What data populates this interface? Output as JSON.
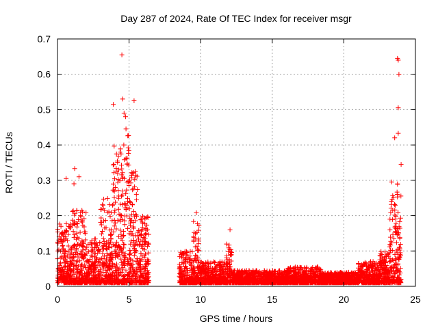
{
  "chart_data": {
    "type": "scatter",
    "title": "Day 287 of 2024, Rate Of TEC Index for receiver msgr",
    "xlabel": "GPS time / hours",
    "ylabel": "ROTI / TECUs",
    "xlim": [
      0,
      25
    ],
    "ylim": [
      0,
      0.7
    ],
    "x_ticks": [
      "0",
      "5",
      "10",
      "15",
      "20",
      "25"
    ],
    "y_ticks": [
      "0",
      "0.1",
      "0.2",
      "0.3",
      "0.4",
      "0.5",
      "0.6",
      "0.7"
    ],
    "grid": true,
    "marker": "+",
    "color": "#ff0000",
    "gap_hours": [
      6.4,
      8.5
    ],
    "series": [
      {
        "notable_points": [
          {
            "x": 4.5,
            "y": 0.655
          },
          {
            "x": 4.55,
            "y": 0.53
          },
          {
            "x": 3.9,
            "y": 0.515
          },
          {
            "x": 5.35,
            "y": 0.525
          },
          {
            "x": 4.65,
            "y": 0.49
          },
          {
            "x": 4.75,
            "y": 0.48
          },
          {
            "x": 1.2,
            "y": 0.333
          },
          {
            "x": 1.5,
            "y": 0.31
          },
          {
            "x": 0.6,
            "y": 0.305
          },
          {
            "x": 1.15,
            "y": 0.29
          },
          {
            "x": 9.7,
            "y": 0.208
          },
          {
            "x": 12.05,
            "y": 0.16
          },
          {
            "x": 23.75,
            "y": 0.645
          },
          {
            "x": 23.8,
            "y": 0.64
          },
          {
            "x": 23.85,
            "y": 0.6
          },
          {
            "x": 23.8,
            "y": 0.505
          },
          {
            "x": 23.8,
            "y": 0.433
          },
          {
            "x": 23.55,
            "y": 0.42
          },
          {
            "x": 24.0,
            "y": 0.345
          }
        ],
        "envelope": [
          {
            "x0": 0.0,
            "x1": 1.0,
            "ymax": 0.18
          },
          {
            "x0": 1.0,
            "x1": 2.0,
            "ymax": 0.22
          },
          {
            "x0": 2.0,
            "x1": 3.0,
            "ymax": 0.14
          },
          {
            "x0": 3.0,
            "x1": 3.8,
            "ymax": 0.25
          },
          {
            "x0": 3.8,
            "x1": 4.6,
            "ymax": 0.4
          },
          {
            "x0": 4.6,
            "x1": 5.0,
            "ymax": 0.45
          },
          {
            "x0": 5.0,
            "x1": 5.6,
            "ymax": 0.33
          },
          {
            "x0": 5.6,
            "x1": 6.4,
            "ymax": 0.2
          },
          {
            "x0": 8.5,
            "x1": 9.5,
            "ymax": 0.1
          },
          {
            "x0": 9.5,
            "x1": 9.9,
            "ymax": 0.19
          },
          {
            "x0": 9.9,
            "x1": 11.8,
            "ymax": 0.07
          },
          {
            "x0": 11.8,
            "x1": 12.2,
            "ymax": 0.12
          },
          {
            "x0": 12.2,
            "x1": 16.0,
            "ymax": 0.045
          },
          {
            "x0": 16.0,
            "x1": 18.5,
            "ymax": 0.055
          },
          {
            "x0": 18.5,
            "x1": 21.0,
            "ymax": 0.04
          },
          {
            "x0": 21.0,
            "x1": 22.5,
            "ymax": 0.07
          },
          {
            "x0": 22.5,
            "x1": 23.2,
            "ymax": 0.1
          },
          {
            "x0": 23.2,
            "x1": 24.0,
            "ymax": 0.3
          }
        ]
      }
    ]
  }
}
